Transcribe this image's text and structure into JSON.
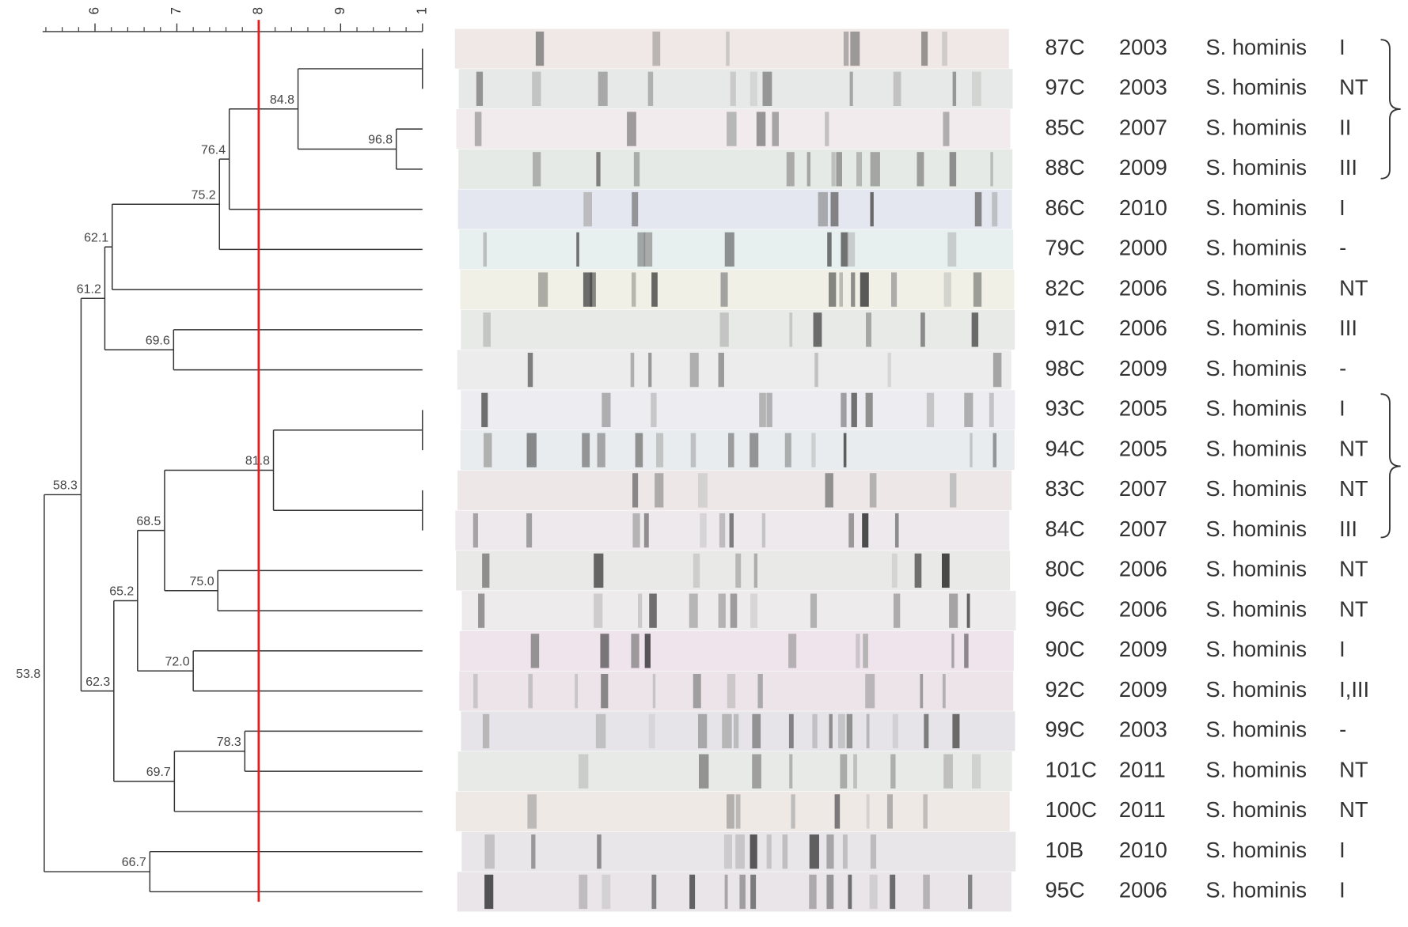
{
  "chart_data": {
    "type": "dendrogram",
    "xlim": [
      53.6,
      100
    ],
    "xticks": [
      {
        "value": 60,
        "label": "6"
      },
      {
        "value": 70,
        "label": "7"
      },
      {
        "value": 80,
        "label": "8"
      },
      {
        "value": 90,
        "label": "9"
      },
      {
        "value": 100,
        "label": "1"
      }
    ],
    "xminorticks": [
      54,
      56,
      58,
      62,
      64,
      66,
      68,
      72,
      74,
      76,
      78,
      82,
      84,
      86,
      88,
      92,
      94,
      96,
      98
    ],
    "cutoff": 80,
    "cutoff_color": "#e02020",
    "line_color": "#333333",
    "tree": {
      "value": 53.8,
      "label": "53.8",
      "children": [
        {
          "value": 58.3,
          "label": "58.3",
          "children": [
            {
              "value": 61.2,
              "label": "61.2",
              "children": [
                {
                  "value": 62.1,
                  "label": "62.1",
                  "children": [
                    {
                      "value": 75.2,
                      "label": "75.2",
                      "children": [
                        {
                          "value": 76.4,
                          "label": "76.4",
                          "children": [
                            {
                              "value": 84.8,
                              "label": "84.8",
                              "children": [
                                {
                                  "value": 100,
                                  "children": [
                                    {
                                      "id": "87C",
                                      "year": 2003,
                                      "species": "S. hominis",
                                      "type": "I"
                                    },
                                    {
                                      "id": "97C",
                                      "year": 2003,
                                      "species": "S. hominis",
                                      "type": "NT"
                                    }
                                  ]
                                },
                                {
                                  "value": 96.8,
                                  "label": "96.8",
                                  "children": [
                                    {
                                      "id": "85C",
                                      "year": 2007,
                                      "species": "S. hominis",
                                      "type": "II"
                                    },
                                    {
                                      "id": "88C",
                                      "year": 2009,
                                      "species": "S. hominis",
                                      "type": "III"
                                    }
                                  ]
                                }
                              ]
                            },
                            {
                              "id": "86C",
                              "year": 2010,
                              "species": "S. hominis",
                              "type": "I"
                            }
                          ]
                        },
                        {
                          "id": "79C",
                          "year": 2000,
                          "species": "S. hominis",
                          "type": "-"
                        }
                      ]
                    },
                    {
                      "id": "82C",
                      "year": 2006,
                      "species": "S. hominis",
                      "type": "NT"
                    }
                  ]
                },
                {
                  "value": 69.6,
                  "label": "69.6",
                  "children": [
                    {
                      "id": "91C",
                      "year": 2006,
                      "species": "S. hominis",
                      "type": "III"
                    },
                    {
                      "id": "98C",
                      "year": 2009,
                      "species": "S. hominis",
                      "type": "-"
                    }
                  ]
                }
              ]
            },
            {
              "value": 62.3,
              "label": "62.3",
              "children": [
                {
                  "value": 65.2,
                  "label": "65.2",
                  "children": [
                    {
                      "value": 68.5,
                      "label": "68.5",
                      "children": [
                        {
                          "value": 81.8,
                          "label": "81.8",
                          "children": [
                            {
                              "value": 100,
                              "children": [
                                {
                                  "id": "93C",
                                  "year": 2005,
                                  "species": "S. hominis",
                                  "type": "I"
                                },
                                {
                                  "id": "94C",
                                  "year": 2005,
                                  "species": "S. hominis",
                                  "type": "NT"
                                }
                              ]
                            },
                            {
                              "value": 100,
                              "children": [
                                {
                                  "id": "83C",
                                  "year": 2007,
                                  "species": "S. hominis",
                                  "type": "NT"
                                },
                                {
                                  "id": "84C",
                                  "year": 2007,
                                  "species": "S. hominis",
                                  "type": "III"
                                }
                              ]
                            }
                          ]
                        },
                        {
                          "value": 75,
                          "label": "75.0",
                          "children": [
                            {
                              "id": "80C",
                              "year": 2006,
                              "species": "S. hominis",
                              "type": "NT"
                            },
                            {
                              "id": "96C",
                              "year": 2006,
                              "species": "S. hominis",
                              "type": "NT"
                            }
                          ]
                        }
                      ]
                    },
                    {
                      "value": 72,
                      "label": "72.0",
                      "children": [
                        {
                          "id": "90C",
                          "year": 2009,
                          "species": "S. hominis",
                          "type": "I"
                        },
                        {
                          "id": "92C",
                          "year": 2009,
                          "species": "S. hominis",
                          "type": "I,III"
                        }
                      ]
                    }
                  ]
                },
                {
                  "value": 69.7,
                  "label": "69.7",
                  "children": [
                    {
                      "value": 78.3,
                      "label": "78.3",
                      "children": [
                        {
                          "id": "99C",
                          "year": 2003,
                          "species": "S. hominis",
                          "type": "-"
                        },
                        {
                          "id": "101C",
                          "year": 2011,
                          "species": "S. hominis",
                          "type": "NT"
                        }
                      ]
                    },
                    {
                      "id": "100C",
                      "year": 2011,
                      "species": "S. hominis",
                      "type": "NT"
                    }
                  ]
                }
              ]
            }
          ]
        },
        {
          "value": 66.7,
          "label": "66.7",
          "children": [
            {
              "id": "10B",
              "year": 2010,
              "species": "S. hominis",
              "type": "I"
            },
            {
              "id": "95C",
              "year": 2006,
              "species": "S. hominis",
              "type": "I"
            }
          ]
        }
      ]
    }
  }
}
